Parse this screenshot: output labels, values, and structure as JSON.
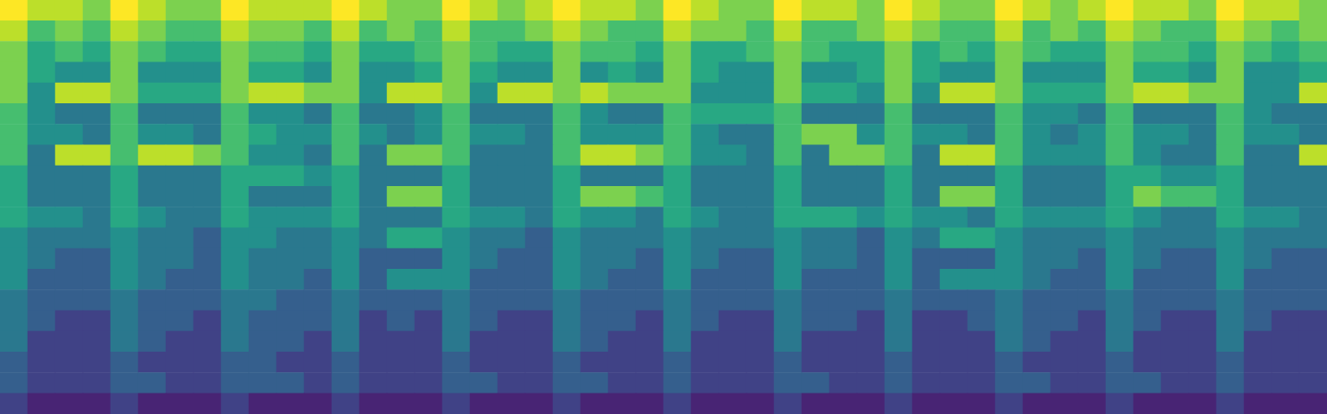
{
  "chart_data": {
    "type": "heatmap",
    "color": "viridis",
    "tick_labels": false,
    "grid": false,
    "clim": [
      0,
      10
    ],
    "cells": [
      [
        10,
        9,
        9,
        8,
        10,
        9,
        8,
        8,
        10,
        9,
        9,
        9,
        10,
        9,
        8,
        8,
        10,
        9,
        8,
        9,
        10,
        9,
        9,
        8,
        10,
        9,
        8,
        8,
        10,
        9,
        9,
        8,
        10,
        9,
        8,
        8,
        10,
        9,
        8,
        9,
        10,
        9,
        9,
        8,
        10,
        9,
        9,
        8
      ],
      [
        9,
        7,
        8,
        7,
        9,
        8,
        7,
        7,
        9,
        8,
        8,
        7,
        9,
        7,
        8,
        7,
        9,
        7,
        7,
        8,
        9,
        8,
        7,
        7,
        9,
        8,
        8,
        7,
        9,
        7,
        7,
        8,
        9,
        8,
        7,
        7,
        9,
        7,
        8,
        7,
        9,
        8,
        7,
        7,
        9,
        8,
        7,
        8
      ],
      [
        8,
        6,
        7,
        6,
        8,
        7,
        6,
        6,
        8,
        7,
        7,
        6,
        8,
        6,
        6,
        7,
        8,
        7,
        6,
        6,
        8,
        7,
        7,
        6,
        8,
        6,
        6,
        7,
        8,
        7,
        6,
        6,
        8,
        6,
        7,
        6,
        8,
        7,
        6,
        6,
        8,
        7,
        7,
        6,
        8,
        7,
        6,
        7
      ],
      [
        8,
        6,
        5,
        5,
        8,
        5,
        5,
        5,
        8,
        6,
        6,
        5,
        8,
        5,
        5,
        6,
        8,
        6,
        5,
        5,
        8,
        5,
        6,
        5,
        8,
        6,
        5,
        5,
        8,
        5,
        5,
        6,
        8,
        6,
        5,
        5,
        8,
        5,
        5,
        5,
        8,
        6,
        6,
        5,
        8,
        5,
        5,
        6
      ],
      [
        8,
        5,
        9,
        9,
        8,
        6,
        6,
        6,
        8,
        9,
        9,
        8,
        8,
        5,
        9,
        9,
        8,
        5,
        9,
        9,
        8,
        9,
        8,
        8,
        8,
        5,
        5,
        5,
        8,
        6,
        6,
        5,
        8,
        5,
        9,
        9,
        8,
        6,
        6,
        6,
        8,
        9,
        9,
        8,
        8,
        5,
        5,
        9
      ],
      [
        7,
        5,
        4,
        4,
        7,
        4,
        4,
        4,
        7,
        5,
        5,
        4,
        7,
        4,
        4,
        5,
        7,
        4,
        4,
        4,
        7,
        5,
        4,
        4,
        7,
        6,
        6,
        6,
        7,
        4,
        4,
        4,
        7,
        4,
        4,
        4,
        7,
        5,
        5,
        4,
        7,
        4,
        4,
        4,
        7,
        5,
        4,
        4
      ],
      [
        7,
        5,
        5,
        4,
        7,
        5,
        5,
        4,
        7,
        6,
        5,
        5,
        7,
        5,
        4,
        5,
        7,
        5,
        5,
        4,
        7,
        5,
        5,
        5,
        7,
        5,
        4,
        4,
        7,
        8,
        8,
        5,
        7,
        5,
        5,
        4,
        7,
        5,
        4,
        5,
        7,
        5,
        5,
        4,
        7,
        5,
        5,
        4
      ],
      [
        7,
        4,
        9,
        9,
        7,
        9,
        9,
        8,
        7,
        5,
        5,
        4,
        7,
        4,
        8,
        8,
        7,
        4,
        4,
        4,
        7,
        9,
        9,
        8,
        7,
        5,
        5,
        4,
        7,
        4,
        8,
        8,
        7,
        4,
        9,
        9,
        7,
        5,
        5,
        5,
        7,
        5,
        4,
        4,
        7,
        4,
        4,
        9
      ],
      [
        6,
        4,
        4,
        4,
        6,
        4,
        4,
        4,
        6,
        6,
        6,
        5,
        6,
        4,
        4,
        4,
        6,
        4,
        4,
        4,
        6,
        4,
        4,
        4,
        6,
        4,
        4,
        4,
        6,
        4,
        4,
        4,
        6,
        4,
        4,
        4,
        6,
        4,
        4,
        4,
        6,
        6,
        5,
        5,
        6,
        4,
        4,
        4
      ],
      [
        6,
        4,
        4,
        4,
        6,
        4,
        4,
        4,
        6,
        4,
        4,
        4,
        6,
        4,
        8,
        8,
        6,
        4,
        4,
        4,
        6,
        8,
        8,
        7,
        6,
        4,
        4,
        4,
        6,
        4,
        4,
        4,
        6,
        4,
        8,
        8,
        6,
        4,
        4,
        4,
        6,
        8,
        7,
        7,
        6,
        4,
        4,
        4
      ],
      [
        6,
        5,
        5,
        4,
        6,
        5,
        4,
        4,
        6,
        5,
        5,
        5,
        6,
        4,
        4,
        4,
        6,
        5,
        5,
        4,
        6,
        5,
        5,
        4,
        6,
        5,
        4,
        4,
        6,
        6,
        6,
        5,
        6,
        5,
        5,
        4,
        6,
        5,
        5,
        5,
        6,
        5,
        4,
        4,
        6,
        5,
        5,
        4
      ],
      [
        5,
        4,
        4,
        4,
        5,
        4,
        4,
        3,
        5,
        5,
        4,
        4,
        5,
        4,
        6,
        6,
        5,
        4,
        4,
        3,
        5,
        4,
        4,
        4,
        5,
        4,
        4,
        4,
        5,
        4,
        4,
        3,
        5,
        4,
        6,
        6,
        5,
        4,
        4,
        4,
        5,
        4,
        4,
        4,
        5,
        4,
        4,
        4
      ],
      [
        5,
        4,
        3,
        3,
        5,
        4,
        4,
        3,
        5,
        4,
        4,
        4,
        5,
        3,
        3,
        3,
        5,
        4,
        3,
        3,
        5,
        4,
        4,
        3,
        5,
        4,
        3,
        3,
        5,
        4,
        4,
        3,
        5,
        3,
        3,
        3,
        5,
        4,
        4,
        3,
        5,
        4,
        3,
        3,
        5,
        4,
        3,
        3
      ],
      [
        5,
        3,
        3,
        3,
        5,
        4,
        3,
        3,
        5,
        4,
        4,
        3,
        5,
        3,
        5,
        5,
        5,
        3,
        3,
        3,
        5,
        4,
        3,
        3,
        5,
        3,
        3,
        3,
        5,
        3,
        3,
        3,
        5,
        3,
        5,
        5,
        5,
        4,
        3,
        3,
        5,
        3,
        3,
        3,
        5,
        3,
        3,
        3
      ],
      [
        4,
        3,
        3,
        3,
        4,
        3,
        3,
        3,
        4,
        4,
        3,
        3,
        4,
        3,
        3,
        3,
        4,
        3,
        3,
        3,
        4,
        3,
        3,
        3,
        4,
        3,
        3,
        3,
        4,
        3,
        3,
        3,
        4,
        3,
        3,
        3,
        4,
        3,
        3,
        3,
        4,
        3,
        3,
        3,
        4,
        3,
        3,
        3
      ],
      [
        4,
        3,
        2,
        2,
        4,
        3,
        3,
        2,
        4,
        3,
        3,
        3,
        4,
        2,
        3,
        2,
        4,
        3,
        2,
        2,
        4,
        3,
        3,
        2,
        4,
        3,
        2,
        2,
        4,
        3,
        3,
        2,
        4,
        2,
        2,
        3,
        4,
        3,
        3,
        2,
        4,
        3,
        2,
        2,
        4,
        3,
        2,
        2
      ],
      [
        4,
        2,
        2,
        2,
        4,
        3,
        2,
        2,
        4,
        3,
        3,
        2,
        4,
        2,
        2,
        2,
        4,
        2,
        2,
        2,
        4,
        3,
        2,
        2,
        4,
        2,
        2,
        2,
        4,
        2,
        2,
        2,
        4,
        2,
        2,
        2,
        4,
        3,
        2,
        2,
        4,
        2,
        2,
        2,
        4,
        2,
        2,
        2
      ],
      [
        3,
        2,
        2,
        2,
        3,
        2,
        2,
        2,
        3,
        3,
        2,
        2,
        3,
        2,
        2,
        2,
        3,
        2,
        2,
        2,
        3,
        2,
        2,
        2,
        3,
        2,
        2,
        2,
        3,
        2,
        2,
        2,
        3,
        2,
        2,
        2,
        3,
        2,
        2,
        2,
        3,
        2,
        2,
        2,
        3,
        2,
        2,
        2
      ],
      [
        3,
        2,
        2,
        2,
        3,
        3,
        2,
        2,
        3,
        3,
        3,
        2,
        3,
        2,
        2,
        2,
        3,
        3,
        2,
        2,
        3,
        3,
        2,
        2,
        3,
        2,
        2,
        2,
        3,
        3,
        2,
        2,
        3,
        2,
        2,
        2,
        3,
        3,
        2,
        2,
        3,
        3,
        2,
        2,
        3,
        2,
        2,
        2
      ],
      [
        2,
        1,
        1,
        1,
        2,
        1,
        1,
        1,
        2,
        1,
        1,
        1,
        2,
        1,
        1,
        1,
        2,
        1,
        1,
        1,
        2,
        1,
        1,
        1,
        2,
        1,
        1,
        1,
        2,
        1,
        1,
        1,
        2,
        1,
        1,
        1,
        2,
        1,
        1,
        1,
        2,
        1,
        1,
        1,
        2,
        1,
        1,
        1
      ]
    ]
  }
}
